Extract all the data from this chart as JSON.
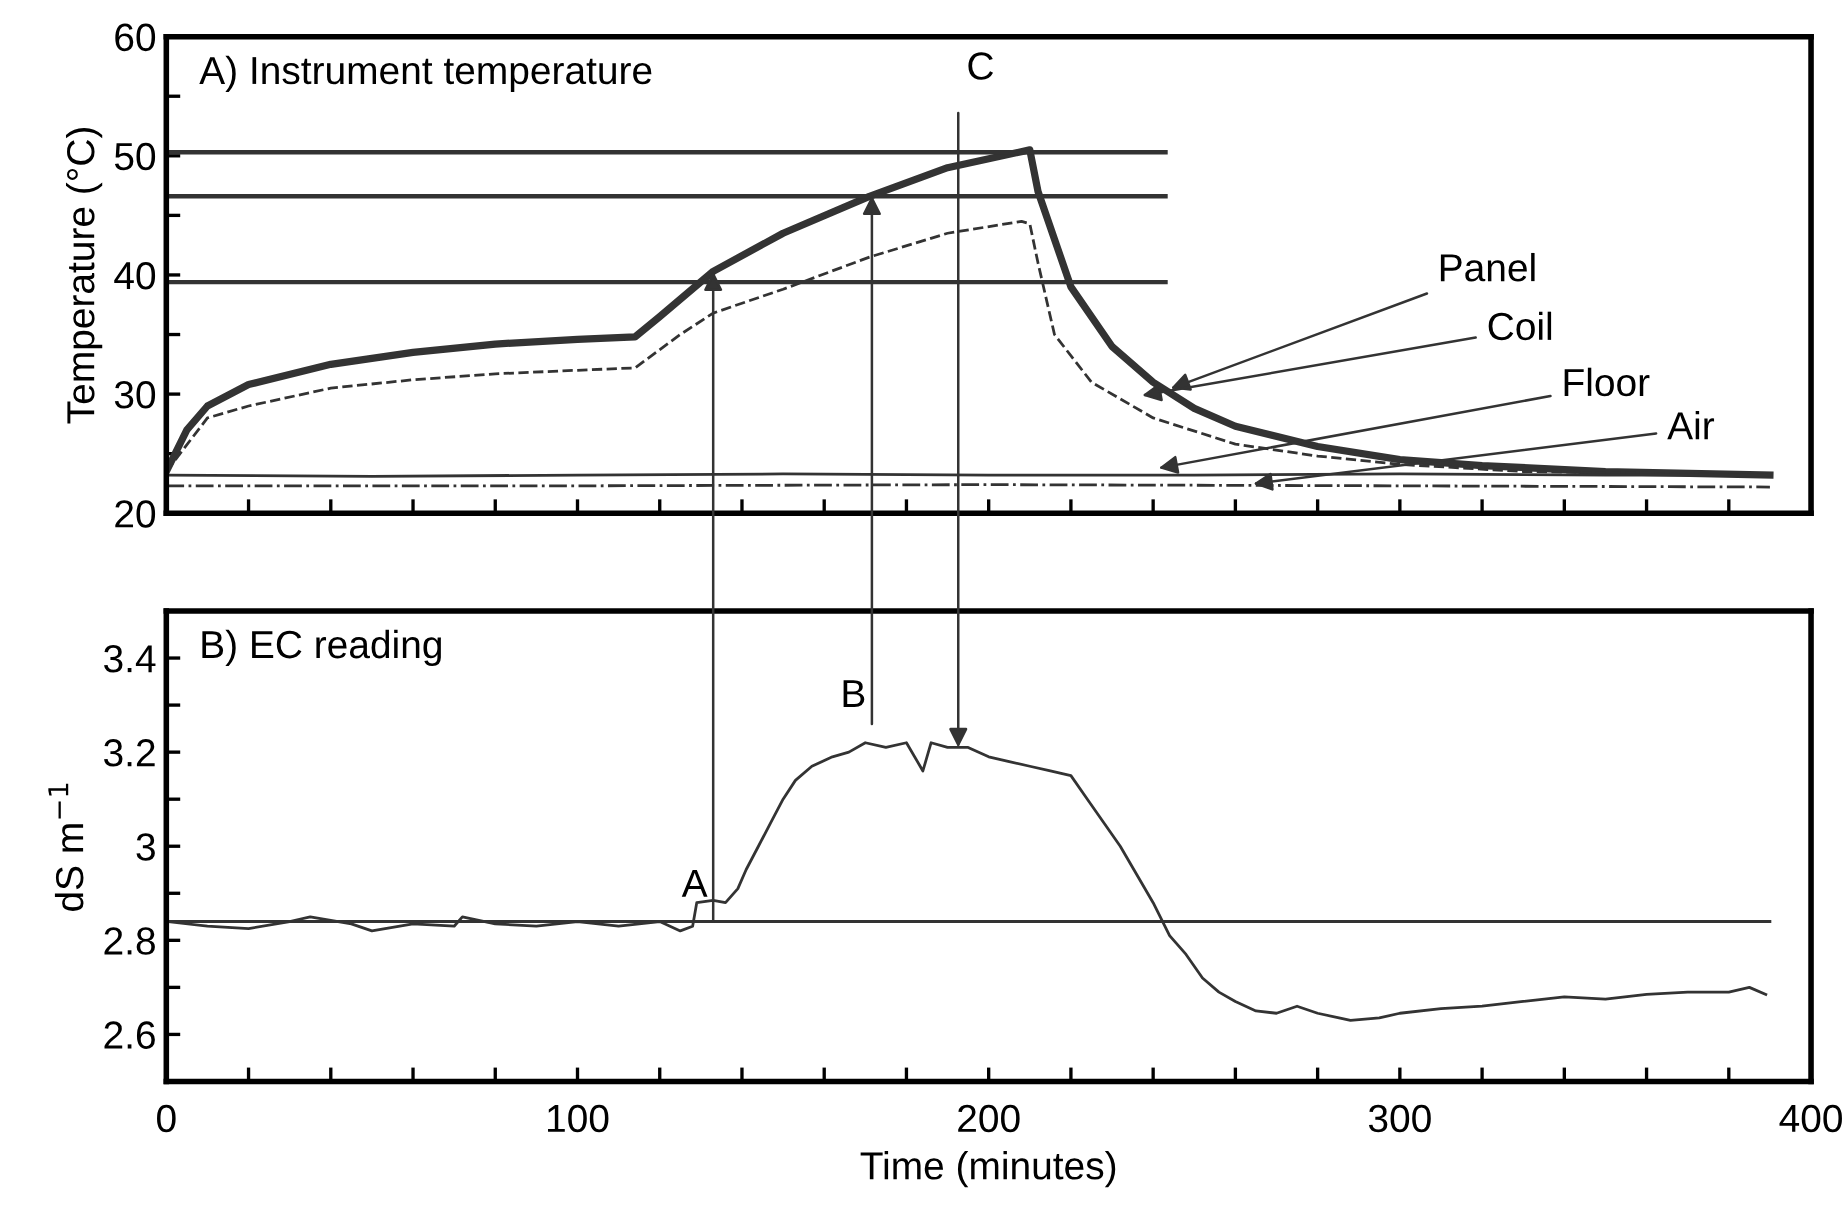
{
  "chart_data": [
    {
      "type": "line",
      "title": "A) Instrument temperature",
      "ylabel": "Temperature (°C)",
      "xlim": [
        0,
        400
      ],
      "ylim": [
        20,
        60
      ],
      "xticks": [
        {
          "value": 0,
          "label": null
        },
        {
          "value": 20,
          "label": null
        },
        {
          "value": 40,
          "label": null
        },
        {
          "value": 60,
          "label": null
        },
        {
          "value": 80,
          "label": null
        },
        {
          "value": 100,
          "label": null
        },
        {
          "value": 120,
          "label": null
        },
        {
          "value": 140,
          "label": null
        },
        {
          "value": 160,
          "label": null
        },
        {
          "value": 180,
          "label": null
        },
        {
          "value": 200,
          "label": null
        },
        {
          "value": 220,
          "label": null
        },
        {
          "value": 240,
          "label": null
        },
        {
          "value": 260,
          "label": null
        },
        {
          "value": 280,
          "label": null
        },
        {
          "value": 300,
          "label": null
        },
        {
          "value": 320,
          "label": null
        },
        {
          "value": 340,
          "label": null
        },
        {
          "value": 360,
          "label": null
        },
        {
          "value": 380,
          "label": null
        },
        {
          "value": 400,
          "label": null
        }
      ],
      "yticks": [
        20,
        {
          "value": 25,
          "label": null
        },
        30,
        {
          "value": 35,
          "label": null
        },
        40,
        {
          "value": 45,
          "label": null
        },
        50,
        {
          "value": 55,
          "label": null
        },
        60
      ],
      "tick_labels": "y",
      "grid": false,
      "legend": false,
      "series": [
        {
          "color": "#333333",
          "line_style": "solid",
          "x": [
            0,
            5,
            10,
            20,
            40,
            60,
            80,
            100,
            114,
            120,
            133,
            150,
            171,
            190,
            210,
            212,
            220,
            230,
            240,
            250,
            260,
            280,
            300,
            320,
            350,
            390
          ],
          "values": [
            23.5,
            27,
            29,
            30.8,
            32.5,
            33.5,
            34.2,
            34.6,
            34.8,
            36.5,
            40.3,
            43.5,
            46.6,
            49,
            50.5,
            47,
            39,
            34,
            31,
            28.8,
            27.3,
            25.6,
            24.5,
            24,
            23.5,
            23.2
          ]
        },
        {
          "color": "#333333",
          "line_style": "dashed",
          "x": [
            0,
            10,
            20,
            40,
            60,
            80,
            100,
            114,
            125,
            133,
            150,
            171,
            190,
            208,
            210,
            212,
            216,
            225,
            240,
            260,
            280,
            300,
            330,
            390
          ],
          "values": [
            23.5,
            28,
            29,
            30.5,
            31.2,
            31.7,
            32,
            32.2,
            35,
            36.8,
            38.8,
            41.5,
            43.5,
            44.5,
            44.3,
            41,
            35,
            31,
            28,
            25.8,
            24.8,
            24.1,
            23.5,
            23.2
          ]
        },
        {
          "color": "#333333",
          "line_style": "solid",
          "x": [
            0,
            50,
            100,
            150,
            200,
            250,
            300,
            350,
            390
          ],
          "values": [
            23.2,
            23.1,
            23.2,
            23.3,
            23.2,
            23.2,
            23.3,
            23.2,
            23.2
          ]
        },
        {
          "color": "#333333",
          "line_style": "dashed",
          "x": [
            0,
            100,
            200,
            300,
            390
          ],
          "values": [
            22.3,
            22.3,
            22.4,
            22.3,
            22.2
          ]
        },
        {
          "color": "#333333",
          "line_style": "solid",
          "x": [
            0,
            243
          ],
          "values": [
            50.3,
            50.3
          ]
        },
        {
          "color": "#333333",
          "line_style": "solid",
          "x": [
            0,
            243
          ],
          "values": [
            46.6,
            46.6
          ]
        },
        {
          "color": "#333333",
          "line_style": "solid",
          "x": [
            0,
            243
          ],
          "values": [
            39.4,
            39.4
          ]
        }
      ],
      "annotations": [
        {
          "text": "Panel",
          "x": 243,
          "y": 30.3
        },
        {
          "text": "Coil",
          "x": 236,
          "y": 29.8
        },
        {
          "text": "Floor",
          "x": 240,
          "y": 23.7
        },
        {
          "text": "Air",
          "x": 263,
          "y": 22.4
        },
        {
          "text": "C",
          "x": 192.6,
          "y": 49.2
        }
      ]
    },
    {
      "type": "line",
      "title": "B) EC reading",
      "ylabel": "dS m$^{−1}$",
      "xlabel": "Time (minutes)",
      "xlim": [
        0,
        400
      ],
      "ylim": [
        2.5,
        3.5
      ],
      "xticks": [
        0,
        {
          "value": 20,
          "label": null
        },
        {
          "value": 40,
          "label": null
        },
        {
          "value": 60,
          "label": null
        },
        {
          "value": 80,
          "label": null
        },
        100,
        {
          "value": 120,
          "label": null
        },
        {
          "value": 140,
          "label": null
        },
        {
          "value": 160,
          "label": null
        },
        {
          "value": 180,
          "label": null
        },
        200,
        {
          "value": 220,
          "label": null
        },
        {
          "value": 240,
          "label": null
        },
        {
          "value": 260,
          "label": null
        },
        {
          "value": 280,
          "label": null
        },
        300,
        {
          "value": 320,
          "label": null
        },
        {
          "value": 340,
          "label": null
        },
        {
          "value": 360,
          "label": null
        },
        {
          "value": 380,
          "label": null
        },
        400
      ],
      "yticks": [
        {
          "value": 2.5,
          "label": null
        },
        2.6,
        {
          "value": 2.7,
          "label": null
        },
        2.8,
        {
          "value": 2.9,
          "label": null
        },
        {
          "value": 3,
          "label": "3"
        },
        {
          "value": 3.1,
          "label": null
        },
        3.2,
        {
          "value": 3.3,
          "label": null
        },
        3.4,
        {
          "value": 3.5,
          "label": null
        }
      ],
      "grid": false,
      "legend": false,
      "series": [
        {
          "color": "#333333",
          "line_style": "solid",
          "x": [
            0,
            10,
            20,
            30,
            35,
            45,
            50,
            60,
            70,
            72,
            80,
            90,
            100,
            110,
            120,
            125,
            128,
            129,
            133,
            136,
            139,
            141,
            144,
            147,
            150,
            153,
            157,
            162,
            166,
            170,
            175,
            180,
            184,
            186,
            190,
            195,
            200,
            205,
            210,
            215,
            220,
            224,
            228,
            232,
            236,
            240,
            244,
            248,
            252,
            256,
            260,
            265,
            270,
            275,
            280,
            288,
            295,
            300,
            310,
            320,
            330,
            340,
            350,
            360,
            370,
            380,
            385,
            389
          ],
          "values": [
            2.84,
            2.83,
            2.825,
            2.84,
            2.85,
            2.835,
            2.82,
            2.835,
            2.83,
            2.85,
            2.835,
            2.83,
            2.84,
            2.83,
            2.84,
            2.82,
            2.83,
            2.88,
            2.885,
            2.88,
            2.91,
            2.95,
            3.0,
            3.05,
            3.1,
            3.14,
            3.17,
            3.19,
            3.2,
            3.22,
            3.21,
            3.22,
            3.16,
            3.22,
            3.21,
            3.21,
            3.19,
            3.18,
            3.17,
            3.16,
            3.15,
            3.1,
            3.05,
            3.0,
            2.94,
            2.88,
            2.81,
            2.77,
            2.72,
            2.69,
            2.67,
            2.65,
            2.645,
            2.66,
            2.645,
            2.63,
            2.635,
            2.645,
            2.655,
            2.66,
            2.67,
            2.68,
            2.675,
            2.685,
            2.69,
            2.69,
            2.7,
            2.685
          ]
        },
        {
          "color": "#333333",
          "line_style": "solid",
          "x": [
            0,
            390
          ],
          "values": [
            2.84,
            2.84
          ]
        }
      ],
      "annotations": [
        {
          "text": "A",
          "x": 133,
          "y": 2.84
        },
        {
          "text": "B",
          "x": 171.6,
          "y": 3.22
        }
      ]
    }
  ]
}
